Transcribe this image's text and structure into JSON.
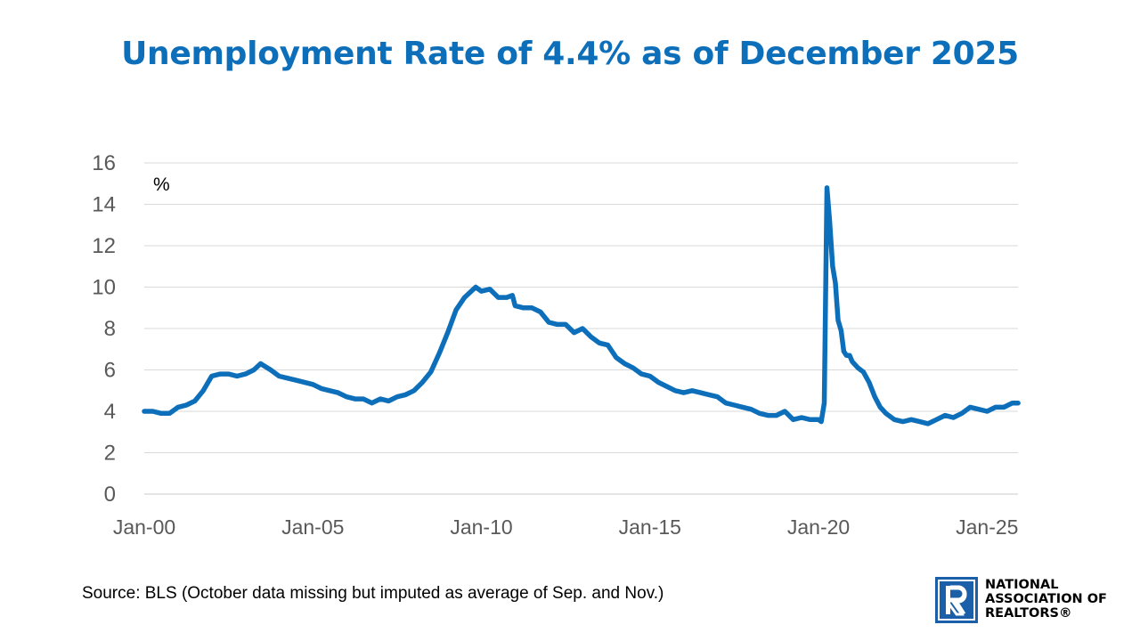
{
  "title": "Unemployment Rate of 4.4% as of December 2025",
  "source": "Source: BLS (October data missing but imputed as average of Sep. and Nov.)",
  "logo": {
    "lines": [
      "NATIONAL",
      "ASSOCIATION OF",
      "REALTORS®"
    ],
    "icon": "realtor-r-logo-icon",
    "color": "#1a5fa8"
  },
  "chart_data": {
    "type": "line",
    "ylabel": "%",
    "ylim": [
      0,
      16
    ],
    "yticks": [
      0,
      2,
      4,
      6,
      8,
      10,
      12,
      14,
      16
    ],
    "xticks": [
      {
        "label": "Jan-00",
        "x": 2000.0
      },
      {
        "label": "Jan-05",
        "x": 2005.0
      },
      {
        "label": "Jan-10",
        "x": 2010.0
      },
      {
        "label": "Jan-15",
        "x": 2015.0
      },
      {
        "label": "Jan-20",
        "x": 2020.0
      },
      {
        "label": "Jan-25",
        "x": 2025.0
      }
    ],
    "xlim": [
      2000.0,
      2025.917
    ],
    "grid": true,
    "line_color": "#0d6fba",
    "series": [
      {
        "points": [
          [
            2000.0,
            4.0
          ],
          [
            2000.25,
            4.0
          ],
          [
            2000.5,
            3.9
          ],
          [
            2000.75,
            3.9
          ],
          [
            2001.0,
            4.2
          ],
          [
            2001.25,
            4.3
          ],
          [
            2001.5,
            4.5
          ],
          [
            2001.75,
            5.0
          ],
          [
            2002.0,
            5.7
          ],
          [
            2002.25,
            5.8
          ],
          [
            2002.5,
            5.8
          ],
          [
            2002.75,
            5.7
          ],
          [
            2003.0,
            5.8
          ],
          [
            2003.25,
            6.0
          ],
          [
            2003.45,
            6.3
          ],
          [
            2003.75,
            6.0
          ],
          [
            2004.0,
            5.7
          ],
          [
            2004.25,
            5.6
          ],
          [
            2004.5,
            5.5
          ],
          [
            2004.75,
            5.4
          ],
          [
            2005.0,
            5.3
          ],
          [
            2005.25,
            5.1
          ],
          [
            2005.5,
            5.0
          ],
          [
            2005.75,
            4.9
          ],
          [
            2006.0,
            4.7
          ],
          [
            2006.25,
            4.6
          ],
          [
            2006.5,
            4.6
          ],
          [
            2006.75,
            4.4
          ],
          [
            2007.0,
            4.6
          ],
          [
            2007.25,
            4.5
          ],
          [
            2007.5,
            4.7
          ],
          [
            2007.75,
            4.8
          ],
          [
            2008.0,
            5.0
          ],
          [
            2008.25,
            5.4
          ],
          [
            2008.5,
            5.9
          ],
          [
            2008.75,
            6.8
          ],
          [
            2009.0,
            7.8
          ],
          [
            2009.25,
            8.9
          ],
          [
            2009.5,
            9.5
          ],
          [
            2009.83,
            10.0
          ],
          [
            2010.0,
            9.8
          ],
          [
            2010.25,
            9.9
          ],
          [
            2010.5,
            9.5
          ],
          [
            2010.75,
            9.5
          ],
          [
            2010.92,
            9.6
          ],
          [
            2011.0,
            9.1
          ],
          [
            2011.25,
            9.0
          ],
          [
            2011.5,
            9.0
          ],
          [
            2011.75,
            8.8
          ],
          [
            2012.0,
            8.3
          ],
          [
            2012.25,
            8.2
          ],
          [
            2012.5,
            8.2
          ],
          [
            2012.75,
            7.8
          ],
          [
            2013.0,
            8.0
          ],
          [
            2013.25,
            7.6
          ],
          [
            2013.5,
            7.3
          ],
          [
            2013.75,
            7.2
          ],
          [
            2014.0,
            6.6
          ],
          [
            2014.25,
            6.3
          ],
          [
            2014.5,
            6.1
          ],
          [
            2014.75,
            5.8
          ],
          [
            2015.0,
            5.7
          ],
          [
            2015.25,
            5.4
          ],
          [
            2015.5,
            5.2
          ],
          [
            2015.75,
            5.0
          ],
          [
            2016.0,
            4.9
          ],
          [
            2016.25,
            5.0
          ],
          [
            2016.5,
            4.9
          ],
          [
            2016.75,
            4.8
          ],
          [
            2017.0,
            4.7
          ],
          [
            2017.25,
            4.4
          ],
          [
            2017.5,
            4.3
          ],
          [
            2017.75,
            4.2
          ],
          [
            2018.0,
            4.1
          ],
          [
            2018.25,
            3.9
          ],
          [
            2018.5,
            3.8
          ],
          [
            2018.75,
            3.8
          ],
          [
            2019.0,
            4.0
          ],
          [
            2019.25,
            3.6
          ],
          [
            2019.5,
            3.7
          ],
          [
            2019.75,
            3.6
          ],
          [
            2020.0,
            3.6
          ],
          [
            2020.08,
            3.5
          ],
          [
            2020.17,
            4.4
          ],
          [
            2020.25,
            14.8
          ],
          [
            2020.33,
            13.2
          ],
          [
            2020.42,
            11.0
          ],
          [
            2020.5,
            10.2
          ],
          [
            2020.58,
            8.4
          ],
          [
            2020.67,
            7.9
          ],
          [
            2020.75,
            6.9
          ],
          [
            2020.83,
            6.7
          ],
          [
            2020.92,
            6.7
          ],
          [
            2021.0,
            6.4
          ],
          [
            2021.17,
            6.1
          ],
          [
            2021.33,
            5.9
          ],
          [
            2021.5,
            5.4
          ],
          [
            2021.67,
            4.7
          ],
          [
            2021.83,
            4.2
          ],
          [
            2022.0,
            3.9
          ],
          [
            2022.25,
            3.6
          ],
          [
            2022.5,
            3.5
          ],
          [
            2022.75,
            3.6
          ],
          [
            2023.0,
            3.5
          ],
          [
            2023.25,
            3.4
          ],
          [
            2023.5,
            3.6
          ],
          [
            2023.75,
            3.8
          ],
          [
            2024.0,
            3.7
          ],
          [
            2024.25,
            3.9
          ],
          [
            2024.5,
            4.2
          ],
          [
            2024.75,
            4.1
          ],
          [
            2025.0,
            4.0
          ],
          [
            2025.25,
            4.2
          ],
          [
            2025.5,
            4.2
          ],
          [
            2025.75,
            4.4
          ],
          [
            2025.92,
            4.4
          ]
        ]
      }
    ]
  }
}
